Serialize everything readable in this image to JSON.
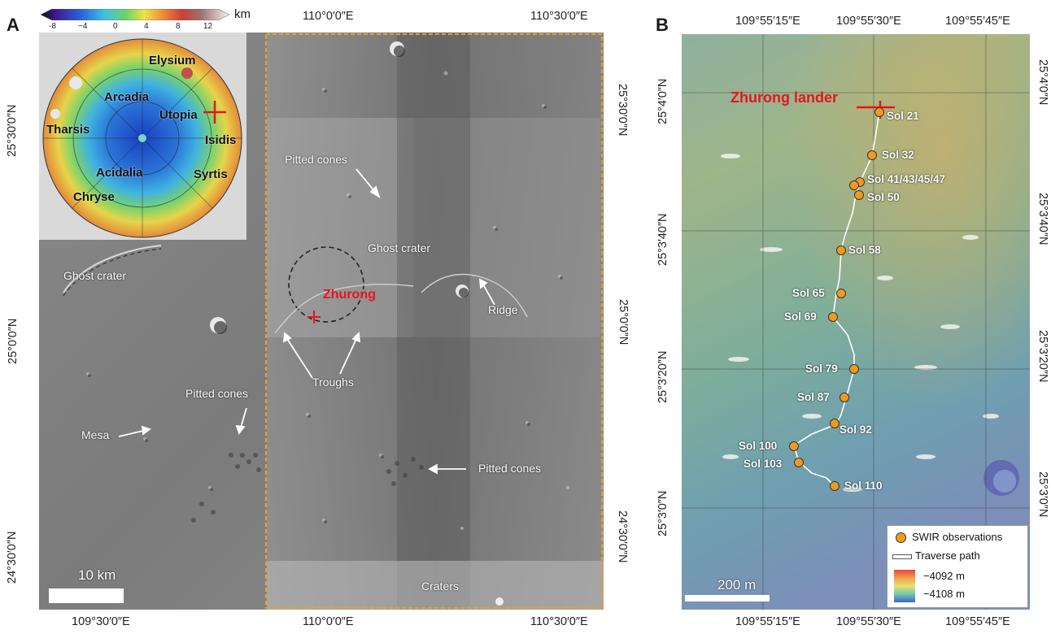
{
  "panels": {
    "a": {
      "letter": "A",
      "top_ticks": [
        "110°0′0″E",
        "110°30′0″E"
      ],
      "bottom_ticks": [
        "109°30′0″E",
        "110°0′0″E",
        "110°30′0″E"
      ],
      "left_ticks": [
        "25°30′0″N",
        "25°0′0″N",
        "24°30′0″N"
      ],
      "right_ticks": [
        "25°30′0″N",
        "25°0′0″N",
        "24°30′0″N"
      ],
      "colorbar": {
        "unit": "km",
        "ticks": [
          "-8",
          "−4",
          "0",
          "4",
          "8",
          "12"
        ]
      },
      "globe_labels": [
        "Elysium",
        "Arcadia",
        "Utopia",
        "Tharsis",
        "Isidis",
        "Acidalia",
        "Syrtis",
        "Chryse"
      ],
      "annotations": {
        "ghost_crater_left": "Ghost crater",
        "ghost_crater_center": "Ghost crater",
        "pitted_cones_top": "Pitted cones",
        "pitted_cones_left": "Pitted cones",
        "pitted_cones_bottom": "Pitted cones",
        "zhurong": "Zhurong",
        "ridge": "Ridge",
        "troughs": "Troughs",
        "mesa": "Mesa",
        "craters": "Craters"
      },
      "scalebar": "10 km"
    },
    "b": {
      "letter": "B",
      "top_ticks": [
        "109°55′15″E",
        "109°55′30″E",
        "109°55′45″E"
      ],
      "bottom_ticks": [
        "109°55′15″E",
        "109°55′30″E",
        "109°55′45″E"
      ],
      "left_ticks": [
        "25°4′0″N",
        "25°3′40″N",
        "25°3′20″N",
        "25°3′0″N"
      ],
      "right_ticks": [
        "25°4′0″N",
        "25°3′40″N",
        "25°3′20″N",
        "25°3′0″N"
      ],
      "lander_label": "Zhurong lander",
      "sols": [
        "Sol 21",
        "Sol 32",
        "Sol 41/43/45/47",
        "Sol 50",
        "Sol 58",
        "Sol 65",
        "Sol 69",
        "Sol 79",
        "Sol 87",
        "Sol 92",
        "Sol 100",
        "Sol 103",
        "Sol 110"
      ],
      "legend": {
        "swir": "SWIR observations",
        "path": "Traverse path",
        "elev_high": "−4092 m",
        "elev_low": "−4108 m"
      },
      "scalebar": "200 m"
    }
  },
  "colors": {
    "marker": "#f39a1e",
    "lander": "#e8141c",
    "study_box": "#f0a020"
  }
}
